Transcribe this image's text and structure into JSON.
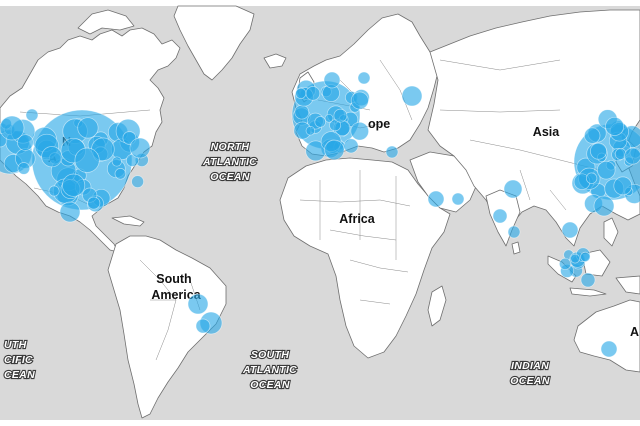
{
  "map": {
    "colors": {
      "ocean": "#d9d9d9",
      "land": "#ffffff",
      "border": "#6f6f6f",
      "bubble": "#29a8e6"
    },
    "continent_labels": [
      {
        "id": "north-america",
        "text": "N"
      },
      {
        "id": "north-america-2",
        "text": "A"
      },
      {
        "id": "south-america",
        "text": "South"
      },
      {
        "id": "south-america-2",
        "text": "America"
      },
      {
        "id": "africa",
        "text": "Africa"
      },
      {
        "id": "europe",
        "text": "ope"
      },
      {
        "id": "asia",
        "text": "Asia"
      },
      {
        "id": "australia",
        "text": "A"
      }
    ],
    "ocean_labels": [
      {
        "id": "north-atlantic",
        "lines": [
          "NORTH",
          "ATLANTIC",
          "OCEAN"
        ]
      },
      {
        "id": "south-atlantic",
        "lines": [
          "SOUTH",
          "ATLANTIC",
          "OCEAN"
        ]
      },
      {
        "id": "indian",
        "lines": [
          "INDIAN",
          "OCEAN"
        ]
      },
      {
        "id": "south-pacific",
        "lines": [
          "UTH",
          "CIFIC",
          "CEAN"
        ]
      }
    ]
  }
}
